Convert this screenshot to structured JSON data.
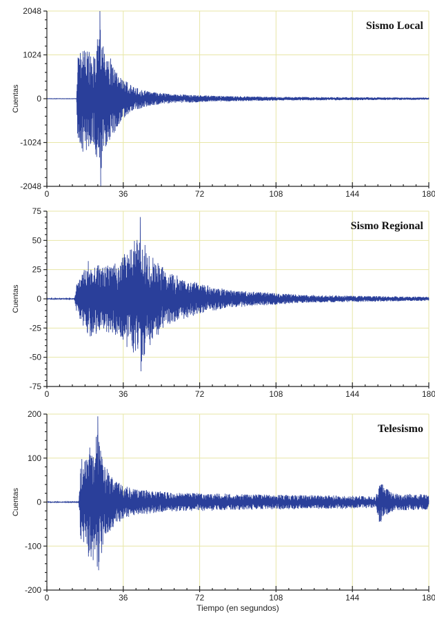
{
  "chart_data": [
    {
      "type": "line",
      "title": "Sismo Local",
      "ylabel": "Cuentas",
      "xlabel": "",
      "xlim": [
        0,
        180
      ],
      "ylim": [
        -2048,
        2048
      ],
      "xticks": [
        0,
        36,
        72,
        108,
        144,
        180
      ],
      "xtick_labels": [
        "0",
        "36",
        "72",
        "108",
        "144",
        "180"
      ],
      "yticks": [
        2048,
        1024,
        0,
        -1024,
        -2048
      ],
      "ytick_labels": [
        "2048",
        "1024",
        "0",
        "-1024",
        "-2048"
      ],
      "grid": true,
      "series": [
        {
          "color": "#2a3f9a",
          "signal": {
            "onset": 14,
            "peak_time": 25,
            "peak_max": 2048,
            "peak_min": -2048,
            "envelope": [
              [
                0,
                10
              ],
              [
                14,
                10
              ],
              [
                14.5,
                1200
              ],
              [
                17,
                1500
              ],
              [
                22,
                1200
              ],
              [
                25,
                2048
              ],
              [
                28,
                1300
              ],
              [
                34,
                700
              ],
              [
                40,
                350
              ],
              [
                48,
                200
              ],
              [
                60,
                120
              ],
              [
                80,
                80
              ],
              [
                110,
                50
              ],
              [
                150,
                40
              ],
              [
                180,
                30
              ]
            ]
          }
        }
      ]
    },
    {
      "type": "line",
      "title": "Sismo Regional",
      "ylabel": "Cuentas",
      "xlabel": "",
      "xlim": [
        0,
        180
      ],
      "ylim": [
        -75,
        75
      ],
      "xticks": [
        0,
        36,
        72,
        108,
        144,
        180
      ],
      "xtick_labels": [
        "0",
        "36",
        "72",
        "108",
        "144",
        "180"
      ],
      "yticks": [
        75,
        50,
        25,
        0,
        -25,
        -50,
        -75
      ],
      "ytick_labels": [
        "75",
        "50",
        "25",
        "0",
        "-25",
        "-50",
        "-75"
      ],
      "grid": true,
      "series": [
        {
          "color": "#2a3f9a",
          "signal": {
            "onset": 13,
            "peak_time": 44,
            "peak_max": 70,
            "peak_min": -62,
            "envelope": [
              [
                0,
                1
              ],
              [
                13,
                1
              ],
              [
                14,
                15
              ],
              [
                20,
                40
              ],
              [
                26,
                32
              ],
              [
                34,
                38
              ],
              [
                44,
                65
              ],
              [
                50,
                40
              ],
              [
                56,
                30
              ],
              [
                62,
                22
              ],
              [
                72,
                15
              ],
              [
                85,
                9
              ],
              [
                100,
                7
              ],
              [
                120,
                4
              ],
              [
                150,
                3
              ],
              [
                180,
                2
              ]
            ]
          }
        }
      ]
    },
    {
      "type": "line",
      "title": "Telesismo",
      "ylabel": "Cuentas",
      "xlabel": "Tiempo (en segundos)",
      "xlim": [
        0,
        180
      ],
      "ylim": [
        -200,
        200
      ],
      "xticks": [
        0,
        36,
        72,
        108,
        144,
        180
      ],
      "xtick_labels": [
        "0",
        "36",
        "72",
        "108",
        "144",
        "180"
      ],
      "yticks": [
        200,
        100,
        0,
        -100,
        -200
      ],
      "ytick_labels": [
        "200",
        "100",
        "0",
        "-100",
        "-200"
      ],
      "grid": true,
      "series": [
        {
          "color": "#2a3f9a",
          "signal": {
            "onset": 15,
            "peak_time": 24,
            "peak_max": 195,
            "peak_min": -155,
            "envelope": [
              [
                0,
                2
              ],
              [
                15,
                2
              ],
              [
                16,
                110
              ],
              [
                20,
                150
              ],
              [
                24,
                190
              ],
              [
                27,
                100
              ],
              [
                32,
                60
              ],
              [
                40,
                35
              ],
              [
                60,
                25
              ],
              [
                100,
                20
              ],
              [
                140,
                18
              ],
              [
                155,
                15
              ],
              [
                157,
                60
              ],
              [
                159,
                40
              ],
              [
                164,
                22
              ],
              [
                180,
                20
              ]
            ]
          }
        }
      ]
    }
  ]
}
